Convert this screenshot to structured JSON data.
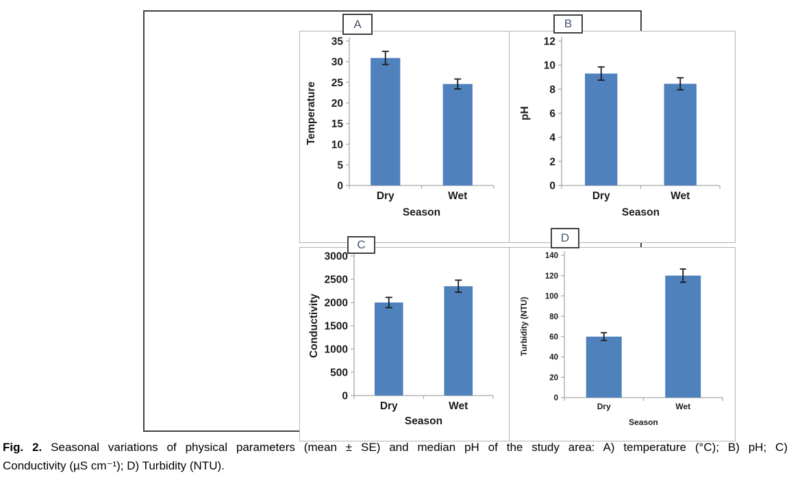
{
  "figure": {
    "caption": {
      "tag": "Fig. 2.",
      "line1": " Seasonal variations of physical parameters (mean ± SE) and median pH of the study area: A) temperature (°C); B) pH; C)",
      "line2": "Conductivity (µS cm⁻¹); D) Turbidity (NTU)."
    }
  },
  "colors": {
    "bar": "#4f81bd",
    "axis": "#a6a6a6",
    "error_bar": "#1a1a1a",
    "tick_text": "#1a1a1a",
    "panel_border": "#b3b3b3",
    "outer_border": "#404040",
    "panel_letter": "#44546a"
  },
  "chart_data": [
    {
      "type": "bar",
      "panel_label": "A",
      "title": "",
      "categories": [
        "Dry",
        "Wet"
      ],
      "values": [
        30.9,
        24.6
      ],
      "errors": [
        1.6,
        1.2
      ],
      "xlabel": "Season",
      "ylabel": "Temperature",
      "ylim": [
        0,
        35
      ],
      "yticks": [
        0,
        5,
        10,
        15,
        20,
        25,
        30,
        35
      ],
      "grid": false,
      "legend": false
    },
    {
      "type": "bar",
      "panel_label": "B",
      "title": "",
      "categories": [
        "Dry",
        "Wet"
      ],
      "values": [
        9.3,
        8.45
      ],
      "errors": [
        0.55,
        0.5
      ],
      "xlabel": "Season",
      "ylabel": "pH",
      "ylim": [
        0,
        12
      ],
      "yticks": [
        0,
        2,
        4,
        6,
        8,
        10,
        12
      ],
      "grid": false,
      "legend": false
    },
    {
      "type": "bar",
      "panel_label": "C",
      "title": "",
      "categories": [
        "Dry",
        "Wet"
      ],
      "values": [
        2000,
        2350
      ],
      "errors": [
        110,
        130
      ],
      "xlabel": "Season",
      "ylabel": "Conductivity",
      "ylim": [
        0,
        3000
      ],
      "yticks": [
        0,
        500,
        1000,
        1500,
        2000,
        2500,
        3000
      ],
      "grid": false,
      "legend": false
    },
    {
      "type": "bar",
      "panel_label": "D",
      "title": "",
      "categories": [
        "Dry",
        "Wet"
      ],
      "values": [
        60,
        120
      ],
      "errors": [
        3.8,
        6.5
      ],
      "xlabel": "Season",
      "ylabel": "Turbidity (NTU)",
      "ylim": [
        0,
        140
      ],
      "yticks": [
        0,
        20,
        40,
        60,
        80,
        100,
        120,
        140
      ],
      "grid": false,
      "legend": false
    }
  ]
}
